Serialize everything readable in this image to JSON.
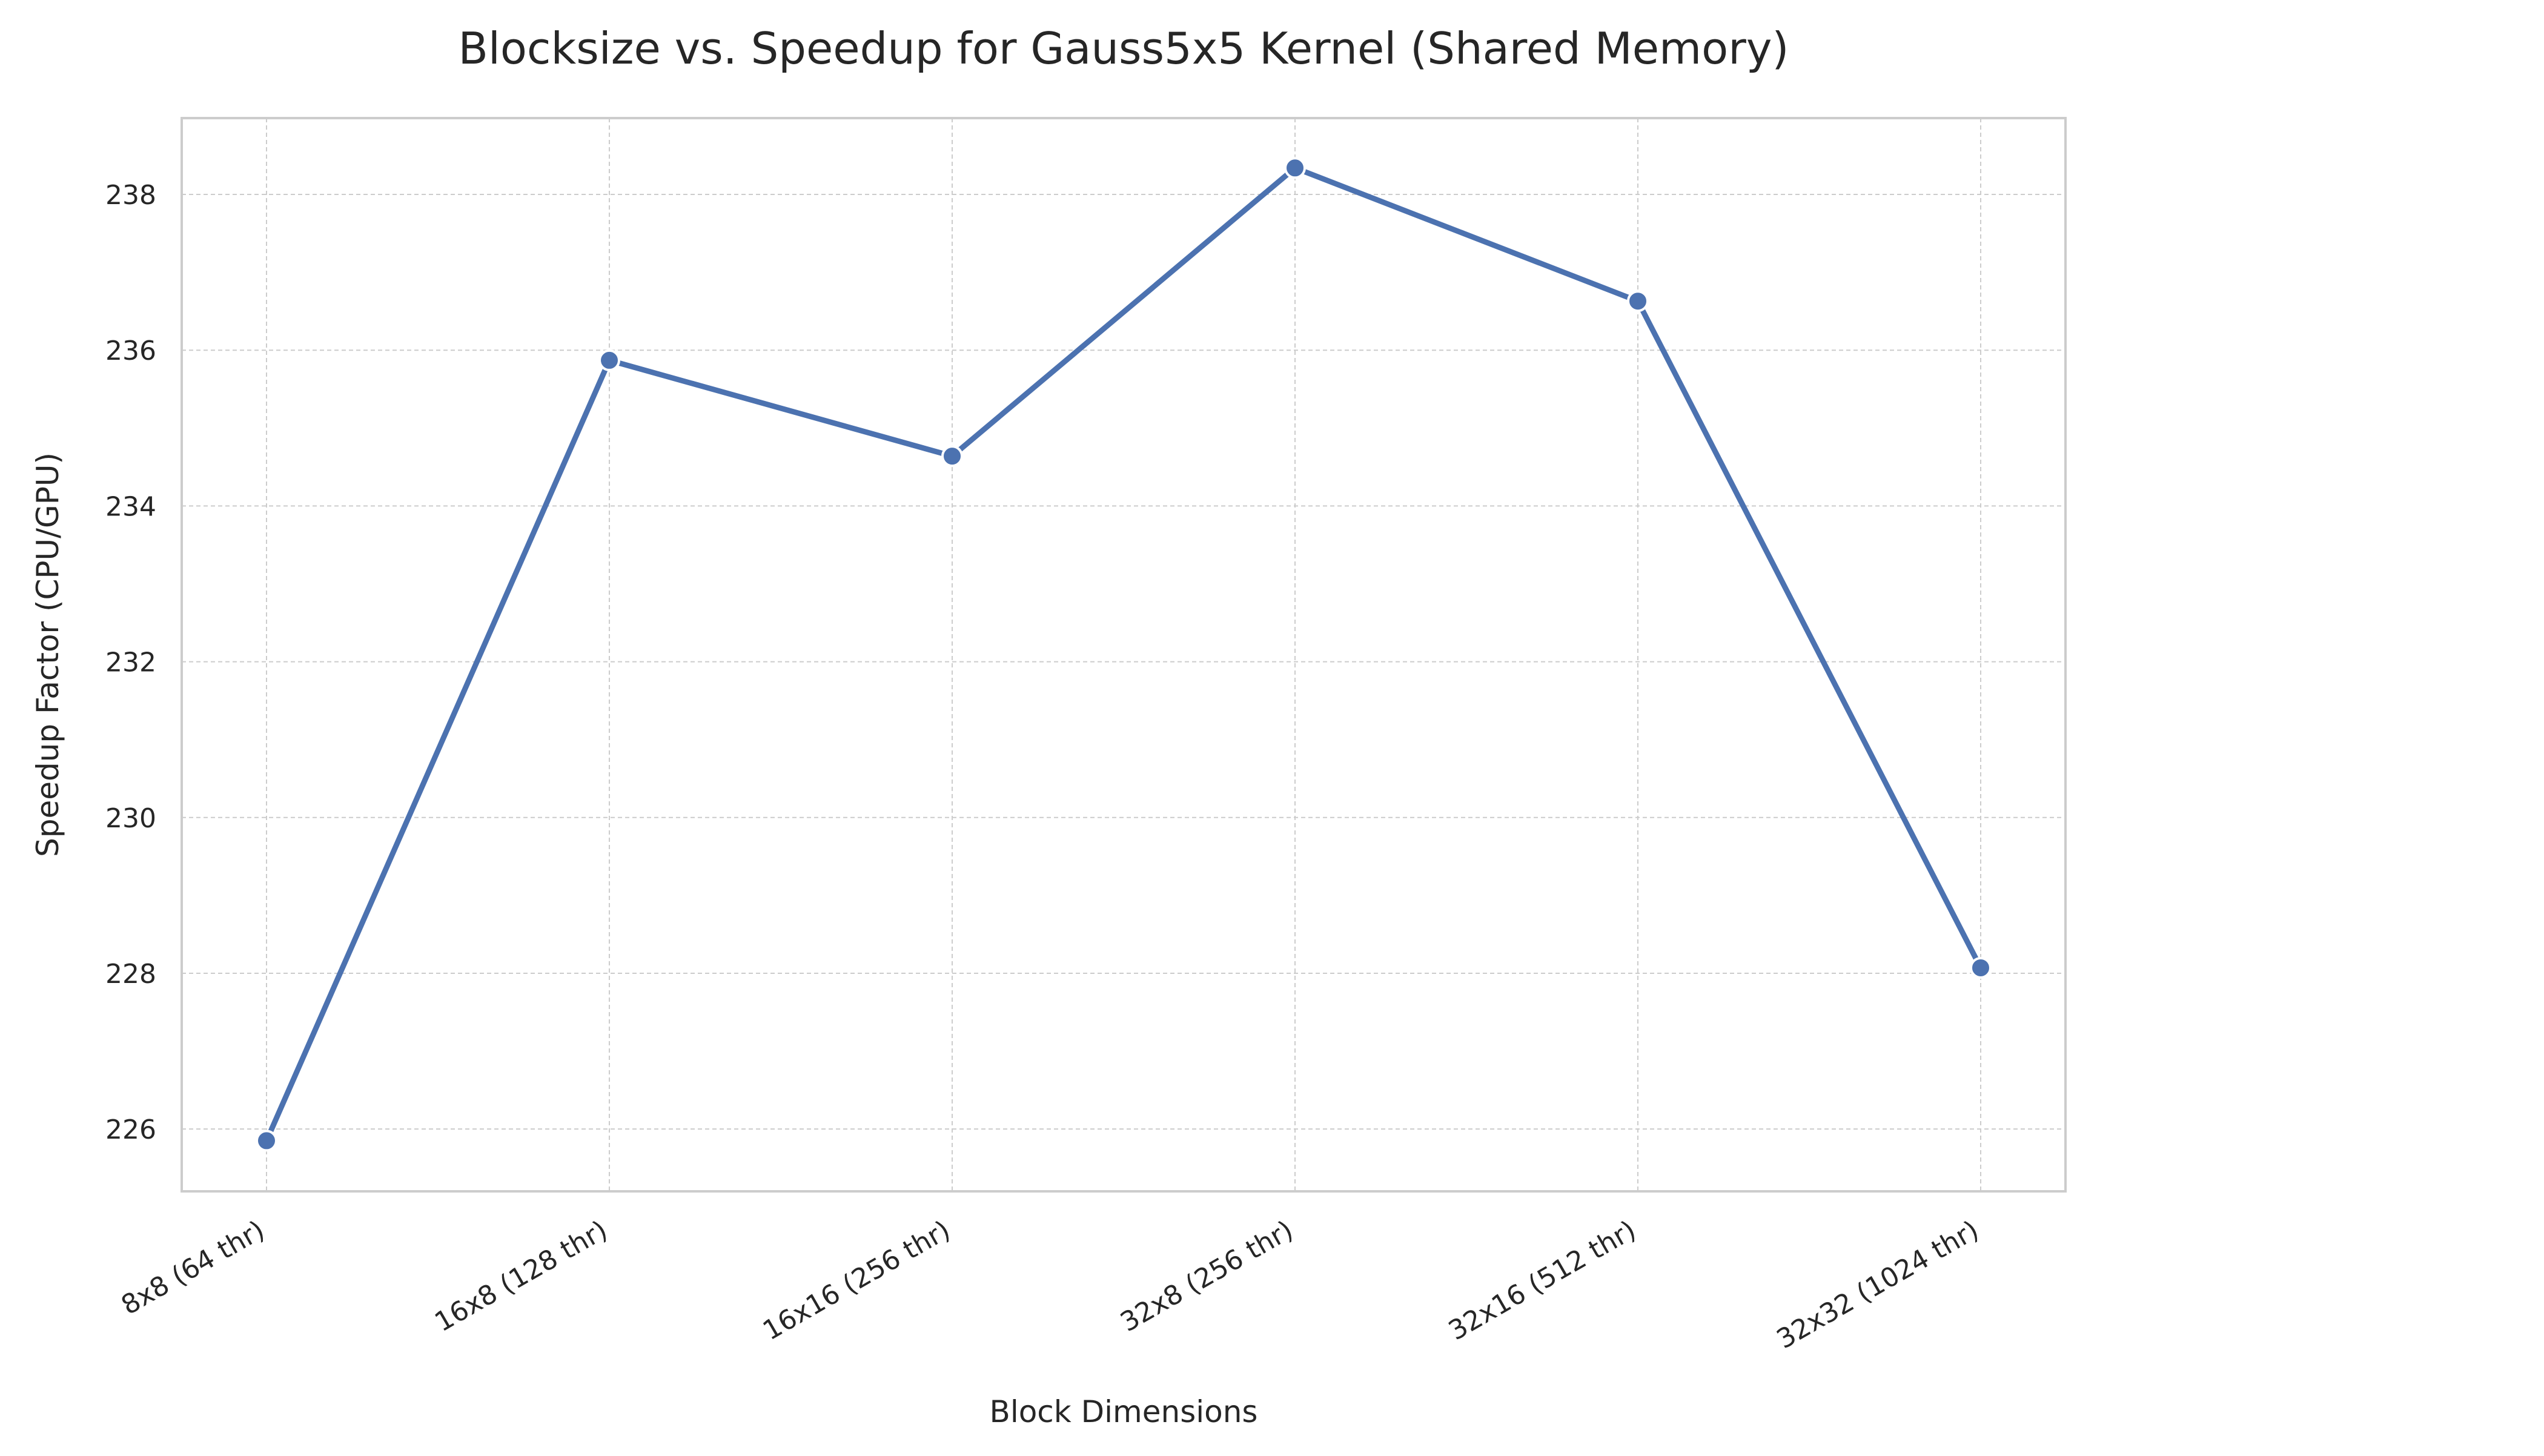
{
  "chart_data": {
    "type": "line",
    "title": "Blocksize vs. Speedup for Gauss5x5 Kernel (Shared Memory)",
    "xlabel": "Block Dimensions",
    "ylabel": "Speedup Factor (CPU/GPU)",
    "categories": [
      "8x8 (64 thr)",
      "16x8 (128 thr)",
      "16x16 (256 thr)",
      "32x8 (256 thr)",
      "32x16 (512 thr)",
      "32x32 (1024 thr)"
    ],
    "series": [
      {
        "values": [
          225.85,
          235.87,
          234.64,
          238.34,
          236.63,
          228.07
        ]
      }
    ],
    "ylim": [
      225.2,
      238.98
    ],
    "yticks": [
      226,
      228,
      230,
      232,
      234,
      236,
      238
    ],
    "grid": true,
    "legend": "none",
    "colors": {
      "line": "#4c72b0",
      "grid": "#cccccc",
      "frame": "#cccccc",
      "text": "#262626"
    }
  }
}
